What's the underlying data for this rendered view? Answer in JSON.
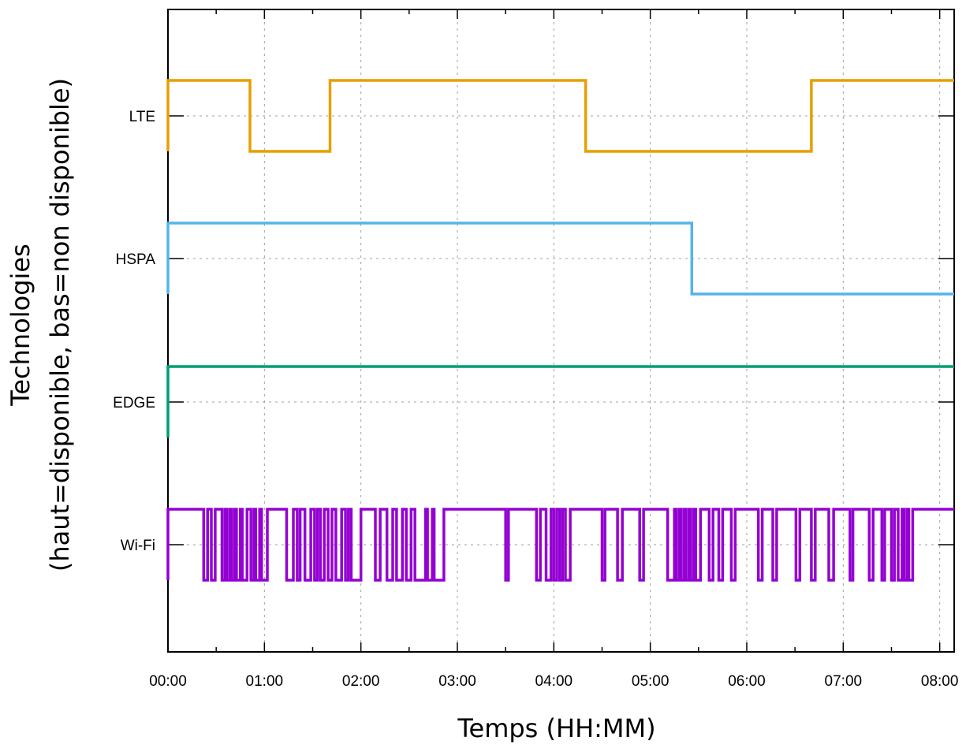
{
  "chart_data": {
    "type": "line",
    "step": true,
    "title": "",
    "xlabel": "Temps (HH:MM)",
    "ylabel": [
      "Technologies",
      "(haut=disponible, bas=non disponible)"
    ],
    "x_unit": "hours",
    "xlim": [
      0,
      8.15
    ],
    "x_ticks": [
      {
        "value": 0,
        "label": "00:00"
      },
      {
        "value": 1,
        "label": "01:00"
      },
      {
        "value": 2,
        "label": "02:00"
      },
      {
        "value": 3,
        "label": "03:00"
      },
      {
        "value": 4,
        "label": "04:00"
      },
      {
        "value": 5,
        "label": "05:00"
      },
      {
        "value": 6,
        "label": "06:00"
      },
      {
        "value": 7,
        "label": "07:00"
      },
      {
        "value": 8,
        "label": "08:00"
      }
    ],
    "grid": true,
    "legend": "none",
    "series": [
      {
        "label": "LTE",
        "color": "#e69f00",
        "segments": [
          [
            0,
            0.85,
            1
          ],
          [
            0.85,
            1.68,
            0
          ],
          [
            1.68,
            4.33,
            1
          ],
          [
            4.33,
            6.67,
            0
          ],
          [
            6.67,
            8.15,
            1
          ]
        ]
      },
      {
        "label": "HSPA",
        "color": "#56b4e9",
        "segments": [
          [
            0,
            5.43,
            1
          ],
          [
            5.43,
            8.15,
            0
          ]
        ]
      },
      {
        "label": "EDGE",
        "color": "#009e73",
        "segments": [
          [
            0,
            8.15,
            1
          ]
        ]
      },
      {
        "label": "Wi-Fi",
        "color": "#9400d3",
        "segments": [
          [
            0,
            0.37,
            1
          ],
          [
            0.37,
            0.41,
            0
          ],
          [
            0.41,
            0.45,
            1
          ],
          [
            0.45,
            0.49,
            0
          ],
          [
            0.49,
            0.56,
            1
          ],
          [
            0.56,
            0.59,
            0
          ],
          [
            0.59,
            0.61,
            1
          ],
          [
            0.61,
            0.64,
            0
          ],
          [
            0.64,
            0.66,
            1
          ],
          [
            0.66,
            0.69,
            0
          ],
          [
            0.69,
            0.71,
            1
          ],
          [
            0.71,
            0.75,
            0
          ],
          [
            0.75,
            0.77,
            1
          ],
          [
            0.77,
            0.82,
            0
          ],
          [
            0.82,
            0.86,
            1
          ],
          [
            0.86,
            0.89,
            0
          ],
          [
            0.89,
            0.91,
            1
          ],
          [
            0.91,
            0.95,
            0
          ],
          [
            0.95,
            0.97,
            1
          ],
          [
            0.97,
            1.03,
            0
          ],
          [
            1.03,
            1.23,
            1
          ],
          [
            1.23,
            1.3,
            0
          ],
          [
            1.3,
            1.34,
            1
          ],
          [
            1.34,
            1.37,
            0
          ],
          [
            1.37,
            1.42,
            1
          ],
          [
            1.42,
            1.48,
            0
          ],
          [
            1.48,
            1.52,
            1
          ],
          [
            1.52,
            1.55,
            0
          ],
          [
            1.55,
            1.58,
            1
          ],
          [
            1.58,
            1.62,
            0
          ],
          [
            1.62,
            1.66,
            1
          ],
          [
            1.66,
            1.7,
            0
          ],
          [
            1.7,
            1.74,
            1
          ],
          [
            1.74,
            1.8,
            0
          ],
          [
            1.8,
            1.84,
            1
          ],
          [
            1.84,
            1.87,
            0
          ],
          [
            1.87,
            1.9,
            1
          ],
          [
            1.9,
            2.0,
            0
          ],
          [
            2.0,
            2.15,
            1
          ],
          [
            2.15,
            2.2,
            0
          ],
          [
            2.2,
            2.27,
            1
          ],
          [
            2.27,
            2.33,
            0
          ],
          [
            2.33,
            2.37,
            1
          ],
          [
            2.37,
            2.43,
            0
          ],
          [
            2.43,
            2.47,
            1
          ],
          [
            2.47,
            2.52,
            0
          ],
          [
            2.52,
            2.56,
            1
          ],
          [
            2.56,
            2.67,
            0
          ],
          [
            2.67,
            2.69,
            1
          ],
          [
            2.69,
            2.74,
            0
          ],
          [
            2.74,
            2.76,
            1
          ],
          [
            2.76,
            2.86,
            0
          ],
          [
            2.86,
            3.5,
            1
          ],
          [
            3.5,
            3.53,
            0
          ],
          [
            3.53,
            3.82,
            1
          ],
          [
            3.82,
            3.86,
            0
          ],
          [
            3.86,
            3.92,
            1
          ],
          [
            3.92,
            3.97,
            0
          ],
          [
            3.97,
            4.0,
            1
          ],
          [
            4.0,
            4.03,
            0
          ],
          [
            4.03,
            4.06,
            1
          ],
          [
            4.06,
            4.09,
            0
          ],
          [
            4.09,
            4.12,
            1
          ],
          [
            4.12,
            4.17,
            0
          ],
          [
            4.17,
            4.5,
            1
          ],
          [
            4.5,
            4.53,
            0
          ],
          [
            4.53,
            4.66,
            1
          ],
          [
            4.66,
            4.71,
            0
          ],
          [
            4.71,
            4.89,
            1
          ],
          [
            4.89,
            4.93,
            0
          ],
          [
            4.93,
            5.18,
            1
          ],
          [
            5.18,
            5.25,
            0
          ],
          [
            5.25,
            5.27,
            1
          ],
          [
            5.27,
            5.3,
            0
          ],
          [
            5.3,
            5.32,
            1
          ],
          [
            5.32,
            5.35,
            0
          ],
          [
            5.35,
            5.37,
            1
          ],
          [
            5.37,
            5.4,
            0
          ],
          [
            5.4,
            5.42,
            1
          ],
          [
            5.42,
            5.45,
            0
          ],
          [
            5.45,
            5.47,
            1
          ],
          [
            5.47,
            5.52,
            0
          ],
          [
            5.52,
            5.61,
            1
          ],
          [
            5.61,
            5.65,
            0
          ],
          [
            5.65,
            5.71,
            1
          ],
          [
            5.71,
            5.75,
            0
          ],
          [
            5.75,
            5.84,
            1
          ],
          [
            5.84,
            5.88,
            0
          ],
          [
            5.88,
            6.12,
            1
          ],
          [
            6.12,
            6.16,
            0
          ],
          [
            6.16,
            6.27,
            1
          ],
          [
            6.27,
            6.31,
            0
          ],
          [
            6.31,
            6.51,
            1
          ],
          [
            6.51,
            6.55,
            0
          ],
          [
            6.55,
            6.67,
            1
          ],
          [
            6.67,
            6.71,
            0
          ],
          [
            6.71,
            6.85,
            1
          ],
          [
            6.85,
            6.9,
            0
          ],
          [
            6.9,
            7.07,
            1
          ],
          [
            7.07,
            7.1,
            0
          ],
          [
            7.1,
            7.27,
            1
          ],
          [
            7.27,
            7.31,
            0
          ],
          [
            7.31,
            7.4,
            1
          ],
          [
            7.4,
            7.43,
            0
          ],
          [
            7.43,
            7.5,
            1
          ],
          [
            7.5,
            7.53,
            0
          ],
          [
            7.53,
            7.57,
            1
          ],
          [
            7.57,
            7.61,
            0
          ],
          [
            7.61,
            7.63,
            1
          ],
          [
            7.63,
            7.66,
            0
          ],
          [
            7.66,
            7.68,
            1
          ],
          [
            7.68,
            7.72,
            0
          ],
          [
            7.72,
            8.15,
            1
          ]
        ]
      }
    ]
  }
}
